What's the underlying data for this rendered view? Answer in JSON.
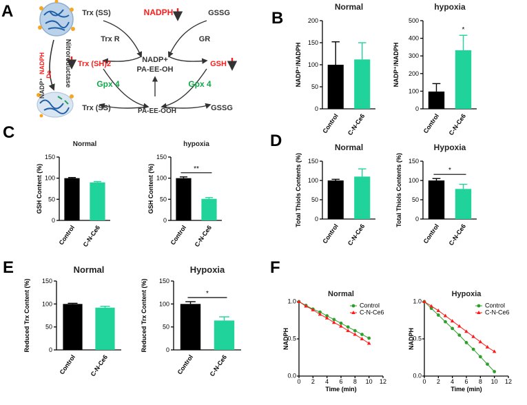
{
  "colors": {
    "control": "#000000",
    "treated": "#1fd39a",
    "red": "#ff1a1a",
    "green": "#12a84a"
  },
  "panel_a": {
    "letter": "A",
    "labels": [
      {
        "id": "trx-ss-top",
        "text": "Trx (SS)",
        "color": "#333333"
      },
      {
        "id": "nadph",
        "text": "NADPH",
        "color": "#ff1a1a"
      },
      {
        "id": "gssg-top",
        "text": "GSSG",
        "color": "#333333"
      },
      {
        "id": "trx-r",
        "text": "Trx R",
        "color": "#333333"
      },
      {
        "id": "gr",
        "text": "GR",
        "color": "#333333"
      },
      {
        "id": "nadp-plus",
        "text": "NADP+",
        "color": "#333333"
      },
      {
        "id": "pa-ee-oh",
        "text": "PA-EE-OH",
        "color": "#333333"
      },
      {
        "id": "trx-sh2",
        "text": "Trx (SH)2",
        "color": "#ff1a1a"
      },
      {
        "id": "gsh",
        "text": "GSH",
        "color": "#ff1a1a"
      },
      {
        "id": "gpx4-left",
        "text": "Gpx 4",
        "color": "#12a84a"
      },
      {
        "id": "gpx4-right",
        "text": "Gpx 4",
        "color": "#12a84a"
      },
      {
        "id": "trx-ss-bottom",
        "text": "Trx (SS)",
        "color": "#333333"
      },
      {
        "id": "pa-ee-ooh",
        "text": "PA-EE-OOH",
        "color": "#333333"
      },
      {
        "id": "gssg-bottom",
        "text": "GSSG",
        "color": "#333333"
      },
      {
        "id": "nadph-side",
        "text": "NADPH",
        "color": "#ff1a1a"
      },
      {
        "id": "de",
        "text": "De",
        "color": "#ff1a1a"
      },
      {
        "id": "nadp-side",
        "text": "NADP⁺",
        "color": "#333333"
      },
      {
        "id": "nitroreductase",
        "text": "Nitroreductase",
        "color": "#333333"
      }
    ]
  },
  "panel_letters": [
    "B",
    "C",
    "D",
    "E",
    "F"
  ],
  "chart_data": [
    {
      "id": "b-normal",
      "type": "bar",
      "title": "Normal",
      "ylabel": "NADP⁺/NADPH",
      "categories": [
        "Control",
        "C-N-Ce6"
      ],
      "values": [
        100,
        112
      ],
      "errors": [
        52,
        38
      ],
      "ylim": [
        0,
        200
      ],
      "ticks": [
        "0",
        "50",
        "100",
        "150",
        "200"
      ],
      "sig": ""
    },
    {
      "id": "b-hypoxia",
      "type": "bar",
      "title": "hypoxia",
      "ylabel": "NADP⁺/NADPH",
      "categories": [
        "Control",
        "C-N-Ce6"
      ],
      "values": [
        98,
        332
      ],
      "errors": [
        45,
        85
      ],
      "ylim": [
        0,
        500
      ],
      "ticks": [
        "0",
        "100",
        "200",
        "300",
        "400",
        "500"
      ],
      "sig": "*",
      "sig_bracket": false
    },
    {
      "id": "c-normal",
      "type": "bar",
      "title": "Normal",
      "ylabel": "GSH Content (%)",
      "categories": [
        "Control",
        "C-N-Ce6"
      ],
      "values": [
        100,
        90
      ],
      "errors": [
        1.5,
        2
      ],
      "ylim": [
        0,
        150
      ],
      "ticks": [
        "0",
        "50",
        "100",
        "150"
      ],
      "sig": ""
    },
    {
      "id": "c-hypoxia",
      "type": "bar",
      "title": "hypoxia",
      "ylabel": "GSH Content (%)",
      "categories": [
        "Control",
        "C-N-Ce6"
      ],
      "values": [
        100,
        51
      ],
      "errors": [
        3,
        3
      ],
      "ylim": [
        0,
        150
      ],
      "ticks": [
        "0",
        "50",
        "100",
        "150"
      ],
      "sig": "**",
      "sig_bracket": true
    },
    {
      "id": "d-normal",
      "type": "bar",
      "title": "Normal",
      "ylabel": "Total Thiols Contents (%)",
      "categories": [
        "Control",
        "C-N-Ce6"
      ],
      "values": [
        100,
        110
      ],
      "errors": [
        3,
        20
      ],
      "ylim": [
        0,
        150
      ],
      "ticks": [
        "0",
        "50",
        "100",
        "150"
      ],
      "sig": ""
    },
    {
      "id": "d-hypoxia",
      "type": "bar",
      "title": "Hypoxia",
      "ylabel": "Total Thiols Contents (%)",
      "categories": [
        "Control",
        "C-N-Ce6"
      ],
      "values": [
        100,
        78
      ],
      "errors": [
        5,
        12
      ],
      "ylim": [
        0,
        150
      ],
      "ticks": [
        "0",
        "50",
        "100",
        "150"
      ],
      "sig": "*",
      "sig_bracket": true
    },
    {
      "id": "e-normal",
      "type": "bar",
      "title": "Normal",
      "ylabel": "Reduced Trx Content (%)",
      "categories": [
        "Control",
        "C-N-Ce6"
      ],
      "values": [
        100,
        92
      ],
      "errors": [
        1.5,
        3
      ],
      "ylim": [
        0,
        150
      ],
      "ticks": [
        "0",
        "50",
        "100",
        "150"
      ],
      "sig": ""
    },
    {
      "id": "e-hypoxia",
      "type": "bar",
      "title": "Hypoxia",
      "ylabel": "Reduced Trx Content (%)",
      "categories": [
        "Control",
        "C-N-Ce6"
      ],
      "values": [
        100,
        64
      ],
      "errors": [
        5,
        8
      ],
      "ylim": [
        0,
        150
      ],
      "ticks": [
        "0",
        "50",
        "100",
        "150"
      ],
      "sig": "*",
      "sig_bracket": true
    },
    {
      "id": "f-normal",
      "type": "line",
      "title": "Normal",
      "xlabel": "Time (min)",
      "ylabel": "NADPH",
      "xlim": [
        0,
        12
      ],
      "ylim": [
        0,
        1.0
      ],
      "xticks": [
        "0",
        "2",
        "4",
        "6",
        "8",
        "10",
        "12"
      ],
      "yticks": [
        "0.0",
        "0.5",
        "1.0"
      ],
      "legend": "top-right",
      "series": [
        {
          "name": "Control",
          "marker": "circle",
          "color": "#2ca02c",
          "x": [
            0,
            1,
            2,
            3,
            4,
            5,
            6,
            7,
            8,
            9,
            10
          ],
          "y": [
            1.0,
            0.95,
            0.9,
            0.86,
            0.81,
            0.76,
            0.71,
            0.66,
            0.61,
            0.56,
            0.51
          ]
        },
        {
          "name": "C-N-Ce6",
          "marker": "triangle",
          "color": "#ff1a1a",
          "x": [
            0,
            1,
            2,
            3,
            4,
            5,
            6,
            7,
            8,
            9,
            10
          ],
          "y": [
            1.0,
            0.94,
            0.89,
            0.83,
            0.78,
            0.72,
            0.67,
            0.61,
            0.56,
            0.5,
            0.44
          ]
        }
      ]
    },
    {
      "id": "f-hypoxia",
      "type": "line",
      "title": "Hypoxia",
      "xlabel": "Time (min)",
      "ylabel": "NADPH",
      "xlim": [
        0,
        12
      ],
      "ylim": [
        0,
        1.0
      ],
      "xticks": [
        "0",
        "2",
        "4",
        "6",
        "8",
        "10",
        "12"
      ],
      "yticks": [
        "0.0",
        "0.5",
        "1.0"
      ],
      "legend": "top-right",
      "series": [
        {
          "name": "Control",
          "marker": "circle",
          "color": "#2ca02c",
          "x": [
            0,
            1,
            2,
            3,
            4,
            5,
            6,
            7,
            8,
            9,
            10
          ],
          "y": [
            1.0,
            0.91,
            0.82,
            0.73,
            0.64,
            0.55,
            0.45,
            0.36,
            0.26,
            0.16,
            0.06
          ]
        },
        {
          "name": "C-N-Ce6",
          "marker": "triangle",
          "color": "#ff1a1a",
          "x": [
            0,
            1,
            2,
            3,
            4,
            5,
            6,
            7,
            8,
            9,
            10
          ],
          "y": [
            1.0,
            0.94,
            0.88,
            0.81,
            0.74,
            0.67,
            0.6,
            0.53,
            0.46,
            0.39,
            0.33
          ]
        }
      ]
    }
  ]
}
